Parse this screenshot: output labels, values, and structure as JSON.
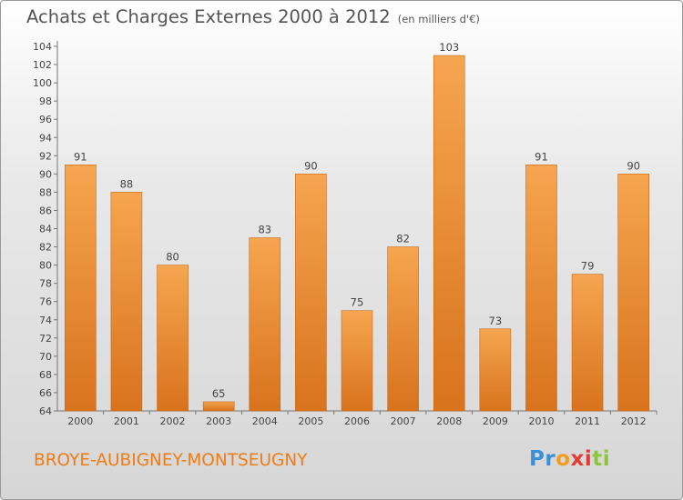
{
  "title": "Achats et Charges Externes 2000 à 2012",
  "subtitle": "(en milliers d'€)",
  "commune": "BROYE-AUBIGNEY-MONTSEUGNY",
  "logo": {
    "letters": [
      "P",
      "r",
      "o",
      "x",
      "i",
      "t",
      "i"
    ],
    "colors": [
      "#3a8fd6",
      "#3a8fd6",
      "#f39c1f",
      "#e53935",
      "#e53935",
      "#8cc63e",
      "#8cc63e"
    ]
  },
  "colors": {
    "bar_top": "#f6a550",
    "bar_bottom": "#d8731c",
    "text": "#555555",
    "accent": "#f07c14"
  },
  "chart_data": {
    "type": "bar",
    "title": "Achats et Charges Externes 2000 à 2012",
    "subtitle": "(en milliers d'€)",
    "categories": [
      "2000",
      "2001",
      "2002",
      "2003",
      "2004",
      "2005",
      "2006",
      "2007",
      "2008",
      "2009",
      "2010",
      "2011",
      "2012"
    ],
    "values": [
      91,
      88,
      80,
      65,
      83,
      90,
      75,
      82,
      103,
      73,
      91,
      79,
      90
    ],
    "ylim": [
      64,
      104
    ],
    "yticks": [
      64,
      66,
      68,
      70,
      72,
      74,
      76,
      78,
      80,
      82,
      84,
      86,
      88,
      90,
      92,
      94,
      96,
      98,
      100,
      102,
      104
    ],
    "grid": false,
    "legend": "none"
  }
}
